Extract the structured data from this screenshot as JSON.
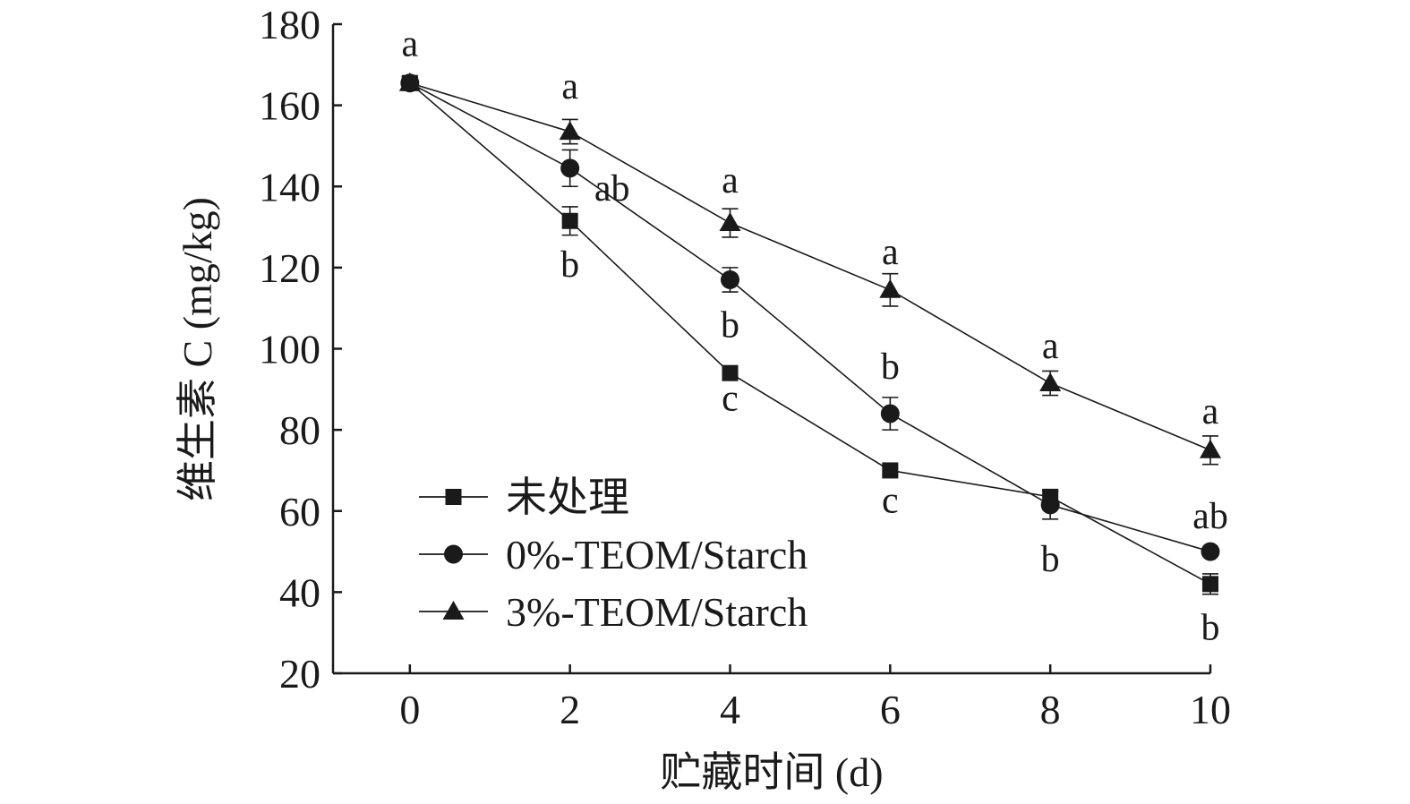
{
  "chart_data": {
    "type": "line",
    "xlabel": "贮藏时间 (d)",
    "ylabel": "维生素 C (mg/kg)",
    "x": [
      0,
      2,
      4,
      6,
      8,
      10
    ],
    "xlim": [
      -0.96,
      10
    ],
    "ylim": [
      20,
      180
    ],
    "xticks": [
      0,
      2,
      4,
      6,
      8,
      10
    ],
    "yticks": [
      20,
      40,
      60,
      80,
      100,
      120,
      140,
      160,
      180
    ],
    "grid": false,
    "legend_position": "bottom-left",
    "series": [
      {
        "name": "未处理",
        "marker": "square",
        "values": [
          165.5,
          131.5,
          94.0,
          70.0,
          63.5,
          42.0
        ],
        "errors": [
          1.5,
          3.5,
          1.0,
          1.0,
          1.5,
          2.5
        ],
        "labels": [
          "",
          "b",
          "c",
          "c",
          "",
          "b"
        ]
      },
      {
        "name": "0%-TEOM/Starch",
        "marker": "circle",
        "values": [
          165.5,
          144.5,
          117.0,
          84.0,
          61.5,
          50.0
        ],
        "errors": [
          1.5,
          4.5,
          3.0,
          4.0,
          3.5,
          1.0
        ],
        "labels": [
          "",
          "ab",
          "b",
          "b",
          "b",
          "ab"
        ]
      },
      {
        "name": "3%-TEOM/Starch",
        "marker": "triangle",
        "values": [
          165.5,
          153.5,
          131.0,
          114.5,
          91.5,
          75.0
        ],
        "errors": [
          1.5,
          3.0,
          3.5,
          4.0,
          3.0,
          3.5
        ],
        "labels": [
          "a",
          "a",
          "a",
          "a",
          "a",
          "a"
        ]
      }
    ]
  }
}
